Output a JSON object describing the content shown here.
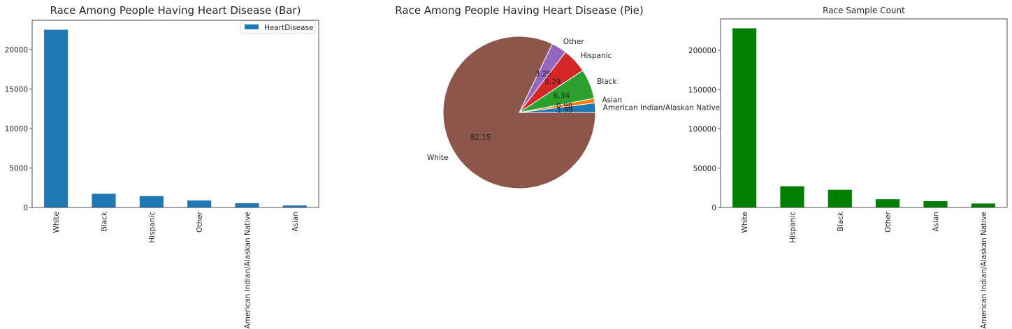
{
  "chart_data": [
    {
      "type": "bar",
      "title": "Race Among People Having Heart Disease (Bar)",
      "categories": [
        "White",
        "Black",
        "Hispanic",
        "Other",
        "American Indian/Alaskan Native",
        "Asian"
      ],
      "series": [
        {
          "name": "HeartDisease",
          "values": [
            22500,
            1730,
            1440,
            890,
            540,
            250
          ]
        }
      ],
      "ylim": [
        0,
        23700
      ],
      "yticks": [
        0,
        5000,
        10000,
        15000,
        20000
      ],
      "legend": "top-right",
      "grid": false,
      "color": "#1f77b4"
    },
    {
      "type": "pie",
      "title": "Race Among People Having Heart Disease (Pie)",
      "slices": [
        {
          "label": "American Indian/Alaskan Native",
          "value": 1.99,
          "pct_text": "1.99",
          "color": "#1f77b4"
        },
        {
          "label": "Asian",
          "value": 0.98,
          "pct_text": "0.98",
          "color": "#ff7f0e"
        },
        {
          "label": "Black",
          "value": 6.34,
          "pct_text": "6.34",
          "color": "#2ca02c"
        },
        {
          "label": "Hispanic",
          "value": 5.29,
          "pct_text": "5.29",
          "color": "#d62728"
        },
        {
          "label": "Other",
          "value": 3.25,
          "pct_text": "3.25",
          "color": "#9467bd"
        },
        {
          "label": "White",
          "value": 82.15,
          "pct_text": "82.15",
          "color": "#8c564b"
        }
      ]
    },
    {
      "type": "bar",
      "title": "Race Sample Count",
      "categories": [
        "White",
        "Hispanic",
        "Black",
        "Other",
        "Asian",
        "American Indian/Alaskan Native"
      ],
      "series": [
        {
          "values": [
            228000,
            27000,
            22500,
            10500,
            8000,
            5000
          ]
        }
      ],
      "ylim": [
        0,
        240000
      ],
      "yticks": [
        0,
        50000,
        100000,
        150000,
        200000
      ],
      "grid": false,
      "color": "#008000"
    }
  ]
}
